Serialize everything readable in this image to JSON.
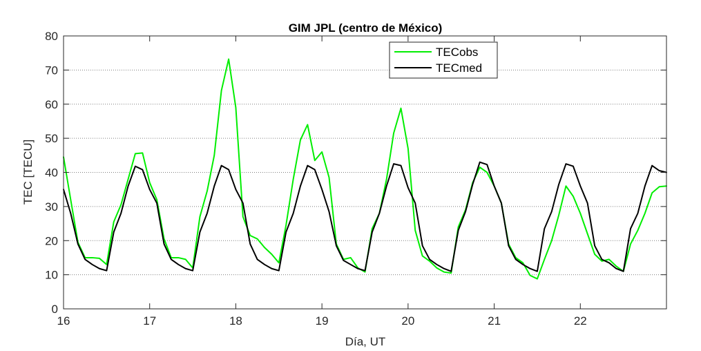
{
  "chart_data": {
    "type": "line",
    "title": "GIM JPL (centro de México)",
    "xlabel": "Día, UT",
    "ylabel": "TEC [TECU]",
    "xlim": [
      16,
      23
    ],
    "ylim": [
      0,
      80
    ],
    "xticks": [
      16,
      17,
      18,
      19,
      20,
      21,
      22
    ],
    "yticks": [
      0,
      10,
      20,
      30,
      40,
      50,
      60,
      70,
      80
    ],
    "grid": "horizontal dotted",
    "legend_position": "top-right",
    "colors": {
      "TECobs": "#00ee00",
      "TECmed": "#000000"
    },
    "x": [
      16.0,
      16.083,
      16.167,
      16.25,
      16.333,
      16.417,
      16.5,
      16.583,
      16.667,
      16.75,
      16.833,
      16.917,
      17.0,
      17.083,
      17.167,
      17.25,
      17.333,
      17.417,
      17.5,
      17.583,
      17.667,
      17.75,
      17.833,
      17.917,
      18.0,
      18.083,
      18.167,
      18.25,
      18.333,
      18.417,
      18.5,
      18.583,
      18.667,
      18.75,
      18.833,
      18.917,
      19.0,
      19.083,
      19.167,
      19.25,
      19.333,
      19.417,
      19.5,
      19.583,
      19.667,
      19.75,
      19.833,
      19.917,
      20.0,
      20.083,
      20.167,
      20.25,
      20.333,
      20.417,
      20.5,
      20.583,
      20.667,
      20.75,
      20.833,
      20.917,
      21.0,
      21.083,
      21.167,
      21.25,
      21.333,
      21.417,
      21.5,
      21.583,
      21.667,
      21.75,
      21.833,
      21.917,
      22.0,
      22.083,
      22.167,
      22.25,
      22.333,
      22.417,
      22.5,
      22.583,
      22.667,
      22.75,
      22.833,
      22.917,
      23.0
    ],
    "series": [
      {
        "name": "TECobs",
        "values": [
          44.5,
          32.0,
          19.5,
          15.0,
          15.0,
          14.8,
          13.0,
          25.5,
          30.5,
          38.0,
          45.5,
          45.7,
          37.0,
          32.0,
          20.5,
          15.0,
          15.0,
          14.5,
          12.0,
          27.0,
          34.5,
          45.0,
          64.0,
          73.2,
          59.0,
          27.0,
          21.5,
          20.5,
          18.0,
          16.0,
          13.5,
          24.5,
          38.0,
          49.5,
          54.0,
          43.5,
          46.0,
          38.5,
          19.0,
          14.5,
          15.0,
          12.0,
          10.8,
          23.5,
          28.0,
          38.0,
          51.5,
          58.8,
          47.0,
          23.0,
          15.5,
          14.0,
          12.0,
          10.8,
          10.5,
          24.0,
          29.0,
          37.0,
          41.5,
          40.0,
          36.0,
          31.0,
          19.0,
          15.0,
          13.5,
          9.8,
          8.8,
          14.5,
          20.0,
          27.5,
          36.0,
          33.0,
          28.0,
          22.0,
          16.0,
          14.0,
          14.5,
          12.5,
          11.0,
          19.0,
          23.0,
          28.0,
          34.0,
          35.8,
          36.0
        ]
      },
      {
        "name": "TECmed",
        "values": [
          35.0,
          28.0,
          19.0,
          14.5,
          13.0,
          11.8,
          11.2,
          22.5,
          28.0,
          36.0,
          41.8,
          40.8,
          35.0,
          31.0,
          19.0,
          14.5,
          13.0,
          11.8,
          11.2,
          22.5,
          28.0,
          36.0,
          42.0,
          40.8,
          35.0,
          31.0,
          19.0,
          14.5,
          13.0,
          11.8,
          11.2,
          22.5,
          28.0,
          36.0,
          42.0,
          40.8,
          35.0,
          28.5,
          18.5,
          14.2,
          13.0,
          11.8,
          11.2,
          22.5,
          28.0,
          36.0,
          42.5,
          42.0,
          35.5,
          31.0,
          18.5,
          14.5,
          13.0,
          11.8,
          11.0,
          23.0,
          28.5,
          36.5,
          43.0,
          42.3,
          36.0,
          31.0,
          18.5,
          14.5,
          13.0,
          11.8,
          11.0,
          23.5,
          28.5,
          36.5,
          42.5,
          41.8,
          36.0,
          31.0,
          18.5,
          14.5,
          13.5,
          11.8,
          11.0,
          23.5,
          28.0,
          36.0,
          42.0,
          40.5,
          40.0
        ]
      }
    ]
  }
}
